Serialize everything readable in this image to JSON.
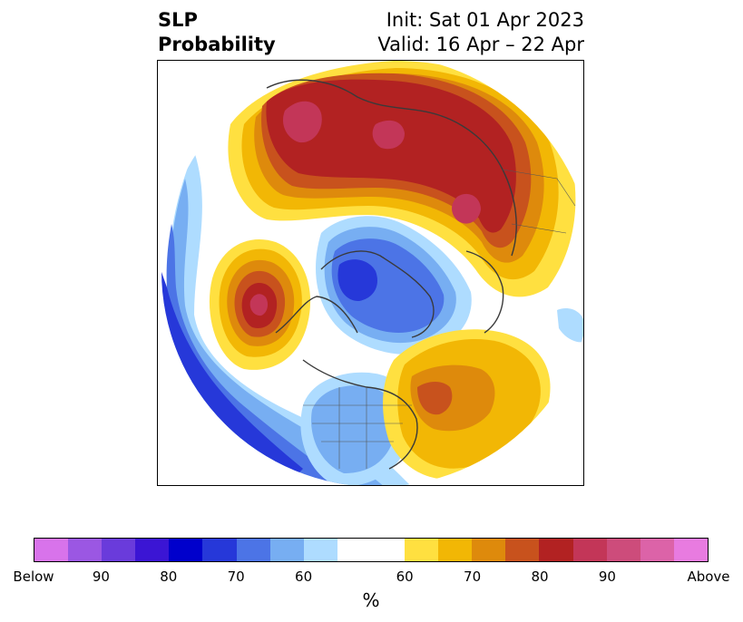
{
  "title": {
    "left_line1": "SLP",
    "left_line2": "Probability",
    "right_line1": "Init: Sat 01 Apr 2023",
    "right_line2": "Valid: 16 Apr – 22 Apr"
  },
  "colorbar": {
    "colors": [
      "#d873eb",
      "#9b57e3",
      "#6a3bdb",
      "#3b15d4",
      "#0000cc",
      "#2638d9",
      "#4c74e6",
      "#77aef2",
      "#aedcff",
      "#ffffff",
      "#ffe040",
      "#f2b705",
      "#de8a0c",
      "#c8521d",
      "#b22222",
      "#c33658",
      "#cd4c7b",
      "#dc63a8",
      "#e87be0"
    ],
    "tick_labels": [
      "Below",
      "90",
      "80",
      "70",
      "60",
      "60",
      "70",
      "80",
      "90",
      "Above"
    ],
    "unit": "%"
  },
  "map": {
    "projection": "north-polar-stereographic",
    "variable": "sea-level-pressure-probability"
  }
}
